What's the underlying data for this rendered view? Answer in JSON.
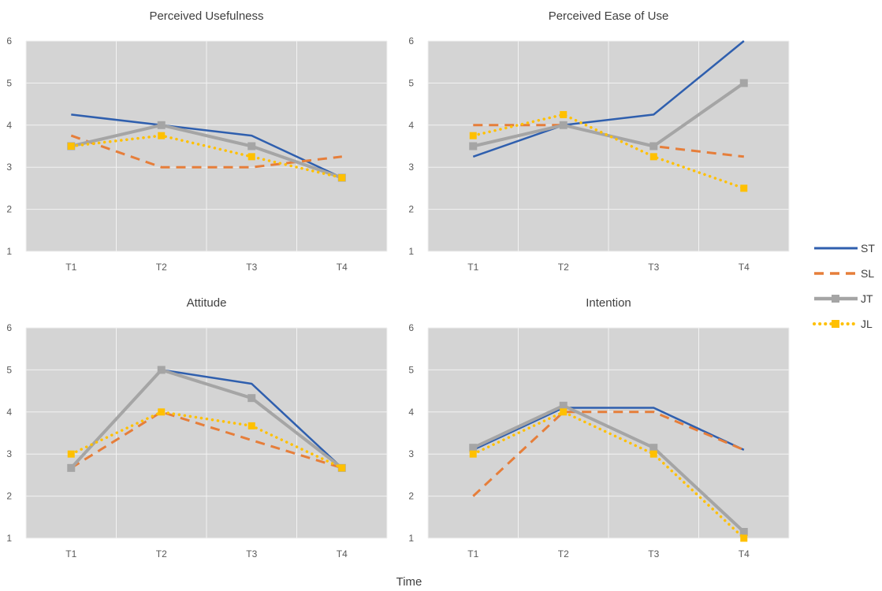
{
  "figure": {
    "xaxis_title": "Time",
    "legend": [
      {
        "name": "ST",
        "color": "#2f5fae",
        "style": "solid",
        "marker": "none"
      },
      {
        "name": "SL",
        "color": "#e67e3a",
        "style": "dashed",
        "marker": "none"
      },
      {
        "name": "JT",
        "color": "#a5a5a5",
        "style": "solid",
        "marker": "square"
      },
      {
        "name": "JL",
        "color": "#ffc000",
        "style": "dotted",
        "marker": "square"
      }
    ],
    "plot_background": "#d4d4d4",
    "gridlines": "#f2f2f2"
  },
  "chart_data": [
    {
      "type": "line",
      "title": "Perceived Usefulness",
      "categories": [
        "T1",
        "T2",
        "T3",
        "T4"
      ],
      "ylim": [
        1,
        6
      ],
      "yticks": [
        "1",
        "2",
        "3",
        "4",
        "5",
        "6"
      ],
      "grid": true,
      "series": [
        {
          "name": "ST",
          "values": [
            4.25,
            4.0,
            3.75,
            2.75
          ]
        },
        {
          "name": "SL",
          "values": [
            3.75,
            3.0,
            3.0,
            3.25
          ]
        },
        {
          "name": "JT",
          "values": [
            3.5,
            4.0,
            3.5,
            2.75
          ]
        },
        {
          "name": "JL",
          "values": [
            3.5,
            3.75,
            3.25,
            2.75
          ]
        }
      ]
    },
    {
      "type": "line",
      "title": "Perceived Ease of Use",
      "categories": [
        "T1",
        "T2",
        "T3",
        "T4"
      ],
      "ylim": [
        1,
        6
      ],
      "yticks": [
        "1",
        "2",
        "3",
        "4",
        "5",
        "6"
      ],
      "grid": true,
      "series": [
        {
          "name": "ST",
          "values": [
            3.25,
            4.0,
            4.25,
            6.0
          ]
        },
        {
          "name": "SL",
          "values": [
            4.0,
            4.0,
            3.5,
            3.25
          ]
        },
        {
          "name": "JT",
          "values": [
            3.5,
            4.0,
            3.5,
            5.0
          ]
        },
        {
          "name": "JL",
          "values": [
            3.75,
            4.25,
            3.25,
            2.5
          ]
        }
      ]
    },
    {
      "type": "line",
      "title": "Attitude",
      "categories": [
        "T1",
        "T2",
        "T3",
        "T4"
      ],
      "ylim": [
        1,
        6
      ],
      "yticks": [
        "1",
        "2",
        "3",
        "4",
        "5",
        "6"
      ],
      "grid": true,
      "series": [
        {
          "name": "ST",
          "values": [
            2.67,
            5.0,
            4.67,
            2.67
          ]
        },
        {
          "name": "SL",
          "values": [
            2.67,
            4.0,
            3.33,
            2.67
          ]
        },
        {
          "name": "JT",
          "values": [
            2.67,
            5.0,
            4.33,
            2.67
          ]
        },
        {
          "name": "JL",
          "values": [
            3.0,
            4.0,
            3.67,
            2.67
          ]
        }
      ]
    },
    {
      "type": "line",
      "title": "Intention",
      "categories": [
        "T1",
        "T2",
        "T3",
        "T4"
      ],
      "ylim": [
        1,
        6
      ],
      "yticks": [
        "1",
        "2",
        "3",
        "4",
        "5",
        "6"
      ],
      "grid": true,
      "series": [
        {
          "name": "ST",
          "values": [
            3.1,
            4.1,
            4.1,
            3.1
          ]
        },
        {
          "name": "SL",
          "values": [
            2.0,
            4.0,
            4.0,
            3.1
          ]
        },
        {
          "name": "JT",
          "values": [
            3.15,
            4.15,
            3.15,
            1.15
          ]
        },
        {
          "name": "JL",
          "values": [
            3.0,
            4.0,
            3.0,
            1.0
          ]
        }
      ]
    }
  ]
}
